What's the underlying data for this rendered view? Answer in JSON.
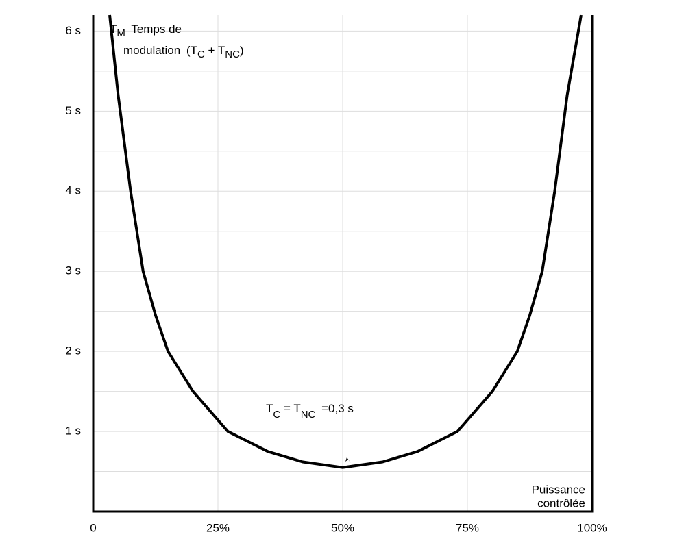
{
  "chart_data": {
    "type": "line",
    "title": [
      "T",
      "M",
      "Temps de",
      "modulation",
      "(T",
      "C",
      "+ T",
      "NC",
      ")"
    ],
    "annotation": [
      "T",
      "C",
      "= T",
      "NC",
      "=0,3 s"
    ],
    "x_label": [
      "Puissance",
      "contrôlée"
    ],
    "x": [
      3.3,
      5,
      7.5,
      10,
      12.5,
      15,
      20,
      27,
      35,
      42,
      50,
      58,
      65,
      73,
      80,
      85,
      87.5,
      90,
      92.5,
      95,
      97.8
    ],
    "series": [
      {
        "name": "TM",
        "color": "#000000",
        "values": [
          6.2,
          5.2,
          4.0,
          3.0,
          2.45,
          2.0,
          1.5,
          1.0,
          0.75,
          0.62,
          0.55,
          0.62,
          0.75,
          1.0,
          1.5,
          2.0,
          2.45,
          3.0,
          4.0,
          5.2,
          6.2
        ]
      }
    ],
    "xlim": [
      0,
      100
    ],
    "xticks": [
      {
        "value": 0,
        "label": "0"
      },
      {
        "value": 25,
        "label": "25%"
      },
      {
        "value": 50,
        "label": "50%"
      },
      {
        "value": 75,
        "label": "75%"
      },
      {
        "value": 100,
        "label": "100%"
      }
    ],
    "ylim": [
      0,
      6.2
    ],
    "yticks": [
      {
        "value": 1,
        "label": "1 s"
      },
      {
        "value": 2,
        "label": "2 s"
      },
      {
        "value": 3,
        "label": "3 s"
      },
      {
        "value": 4,
        "label": "4 s"
      },
      {
        "value": 5,
        "label": "5 s"
      },
      {
        "value": 6,
        "label": "6 s"
      }
    ],
    "minor_yticks": [
      0.5,
      1.5,
      2.5,
      3.5,
      4.5,
      5.5
    ],
    "grid": true
  }
}
